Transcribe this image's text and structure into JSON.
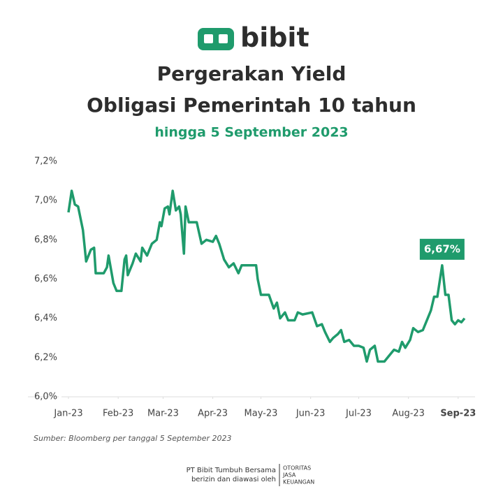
{
  "brand": {
    "name": "bibit"
  },
  "chart_data": {
    "type": "line",
    "title": [
      "Pergerakan Yield",
      "Obligasi Pemerintah 10 tahun"
    ],
    "subtitle": "hingga 5 September 2023",
    "color": "#1f9b6c",
    "x": [
      0,
      2,
      4,
      6,
      9,
      11,
      14,
      16,
      17,
      22,
      24,
      25,
      28,
      30,
      33,
      35,
      36,
      37,
      40,
      42,
      45,
      46,
      49,
      52,
      55,
      57,
      58,
      60,
      62,
      63,
      65,
      67,
      69,
      70,
      72,
      73,
      75,
      80,
      83,
      86,
      90,
      92,
      94,
      97,
      100,
      103,
      106,
      108,
      117,
      118,
      120,
      125,
      128,
      130,
      132,
      135,
      137,
      141,
      143,
      146,
      152,
      155,
      158,
      160,
      163,
      165,
      168,
      170,
      172,
      175,
      178,
      181,
      184,
      186,
      188,
      191,
      193,
      197,
      200,
      203,
      206,
      208,
      210,
      213,
      215,
      218,
      221,
      224,
      226,
      228,
      230,
      233,
      235,
      237,
      239,
      241,
      243,
      245,
      247
    ],
    "values": [
      6.94,
      7.05,
      6.98,
      6.97,
      6.85,
      6.69,
      6.75,
      6.76,
      6.63,
      6.63,
      6.66,
      6.72,
      6.58,
      6.54,
      6.54,
      6.7,
      6.72,
      6.62,
      6.68,
      6.73,
      6.69,
      6.76,
      6.72,
      6.78,
      6.8,
      6.89,
      6.87,
      6.96,
      6.97,
      6.93,
      7.05,
      6.95,
      6.97,
      6.93,
      6.73,
      6.97,
      6.89,
      6.89,
      6.78,
      6.8,
      6.79,
      6.82,
      6.78,
      6.7,
      6.66,
      6.68,
      6.63,
      6.67,
      6.67,
      6.6,
      6.52,
      6.52,
      6.45,
      6.48,
      6.4,
      6.43,
      6.39,
      6.39,
      6.43,
      6.42,
      6.43,
      6.36,
      6.37,
      6.33,
      6.28,
      6.3,
      6.32,
      6.34,
      6.28,
      6.29,
      6.26,
      6.26,
      6.25,
      6.18,
      6.24,
      6.26,
      6.18,
      6.18,
      6.21,
      6.24,
      6.23,
      6.28,
      6.25,
      6.29,
      6.35,
      6.33,
      6.34,
      6.4,
      6.44,
      6.51,
      6.51,
      6.67,
      6.52,
      6.52,
      6.39,
      6.37,
      6.39,
      6.38,
      6.4
    ],
    "xlim": [
      0,
      247
    ],
    "xticks": [
      {
        "value": 0,
        "label": "Jan-23"
      },
      {
        "value": 31,
        "label": "Feb-23"
      },
      {
        "value": 59,
        "label": "Mar-23"
      },
      {
        "value": 90,
        "label": "Apr-23"
      },
      {
        "value": 120,
        "label": "May-23"
      },
      {
        "value": 151,
        "label": "Jun-23"
      },
      {
        "value": 181,
        "label": "Jul-23"
      },
      {
        "value": 212,
        "label": "Aug-23"
      },
      {
        "value": 243,
        "label": "Sep-23"
      }
    ],
    "ylim": [
      6.0,
      7.2
    ],
    "yticks": [
      {
        "value": 6.0,
        "label": "6,0%"
      },
      {
        "value": 6.2,
        "label": "6,2%"
      },
      {
        "value": 6.4,
        "label": "6,4%"
      },
      {
        "value": 6.6,
        "label": "6,6%"
      },
      {
        "value": 6.8,
        "label": "6,8%"
      },
      {
        "value": 7.0,
        "label": "7,0%"
      },
      {
        "value": 7.2,
        "label": "7,2%"
      }
    ],
    "annotations": [
      {
        "text": "6,67%",
        "x": 233,
        "y": 6.67
      }
    ],
    "source": "Sumber: Bloomberg per tanggal 5 September 2023"
  },
  "footer": {
    "company": "PT Bibit Tumbuh Bersama",
    "note": "berizin dan diawasi oleh",
    "regulator": [
      "OTORITAS",
      "JASA",
      "KEUANGAN"
    ]
  }
}
